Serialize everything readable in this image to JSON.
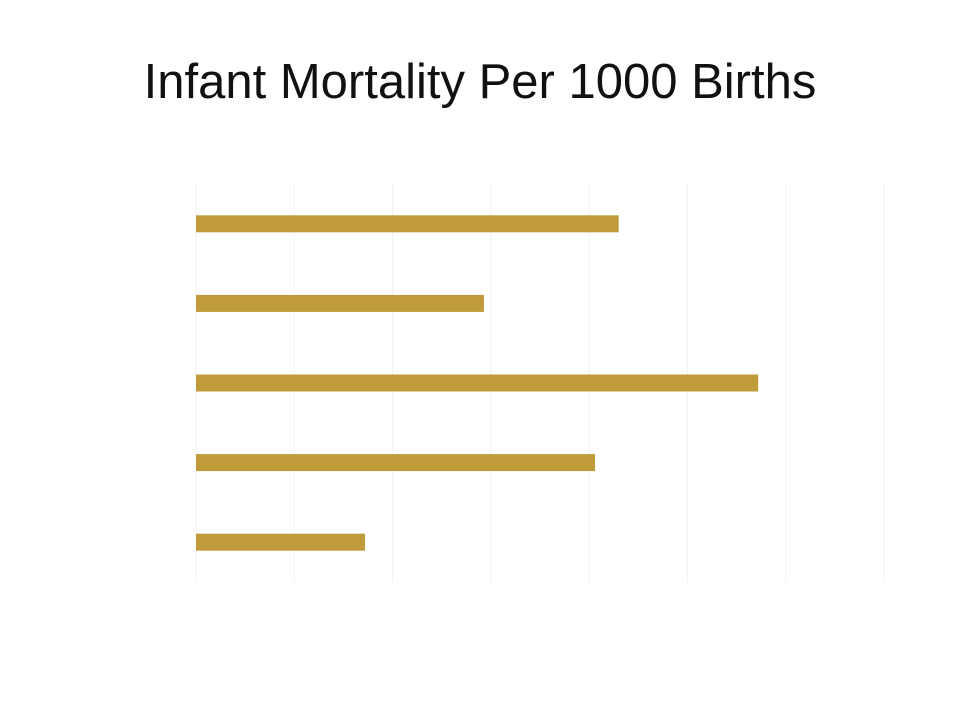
{
  "page": {
    "title": "Infant Mortality Per 1000 Births"
  },
  "chart_data": {
    "type": "bar",
    "orientation": "horizontal",
    "categories": [
      "",
      "",
      "",
      "",
      ""
    ],
    "values": [
      4.3,
      2.93,
      5.72,
      4.06,
      1.72
    ],
    "xlim": [
      0,
      7
    ],
    "x_gridlines": [
      0,
      1,
      2,
      3,
      4,
      5,
      6,
      7
    ],
    "grid": true,
    "bar_color": "#BF9B3A",
    "grid_color": "#F2F2F2"
  }
}
